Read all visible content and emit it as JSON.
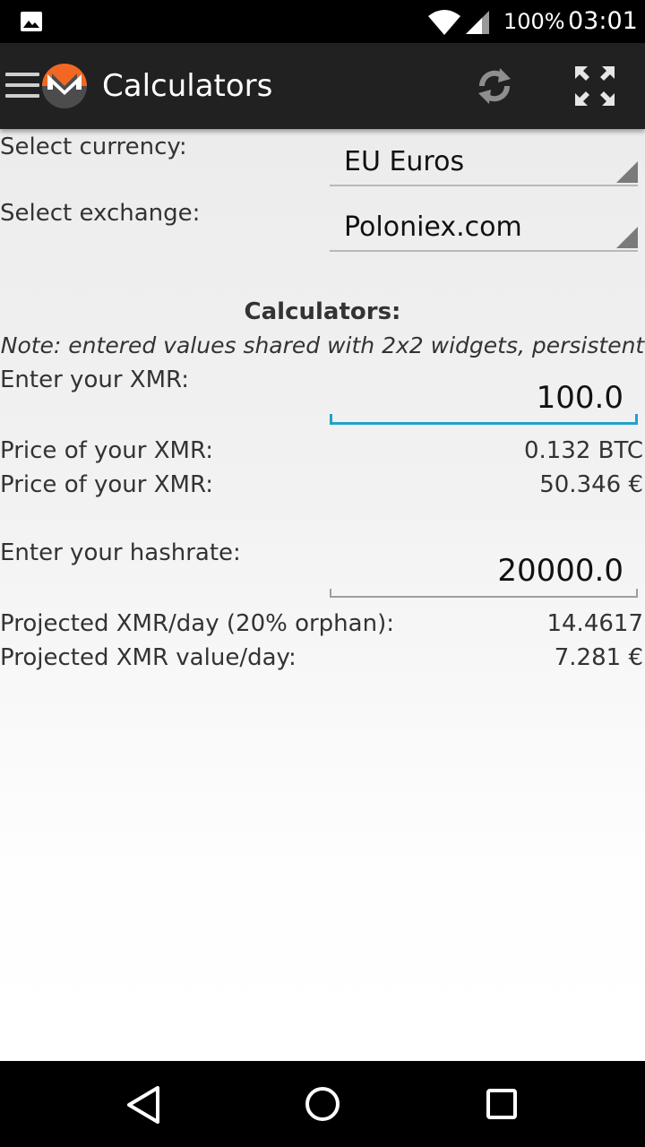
{
  "status_bar": {
    "battery": "100%",
    "time": "03:01"
  },
  "app_bar": {
    "title": "Calculators"
  },
  "settings": {
    "currency_label": "Select currency:",
    "currency_value": "EU Euros",
    "exchange_label": "Select exchange:",
    "exchange_value": "Poloniex.com"
  },
  "calculators": {
    "heading": "Calculators:",
    "note": "Note: entered values shared with 2x2 widgets, persistent",
    "xmr_label": "Enter your XMR:",
    "xmr_value": "100.0",
    "price_btc_label": "Price of your XMR:",
    "price_btc_value": "0.132 BTC",
    "price_eur_label": "Price of your XMR:",
    "price_eur_value": "50.346 €",
    "hashrate_label": "Enter your hashrate:",
    "hashrate_value": "20000.0",
    "projected_day_label": "Projected XMR/day (20% orphan):",
    "projected_day_value": "14.4617",
    "projected_value_label": "Projected XMR value/day:",
    "projected_value_value": "7.281 €"
  },
  "icons": {
    "gallery": "gallery-icon",
    "wifi": "wifi-icon",
    "signal": "signal-icon",
    "menu": "menu-icon",
    "logo": "monero-logo",
    "refresh": "refresh-icon",
    "fullscreen": "fullscreen-icon",
    "back": "back-icon",
    "home": "home-icon",
    "recents": "recents-icon"
  },
  "colors": {
    "app_bar": "#212121",
    "accent": "#1fa3c9",
    "monero_orange": "#f26822"
  }
}
